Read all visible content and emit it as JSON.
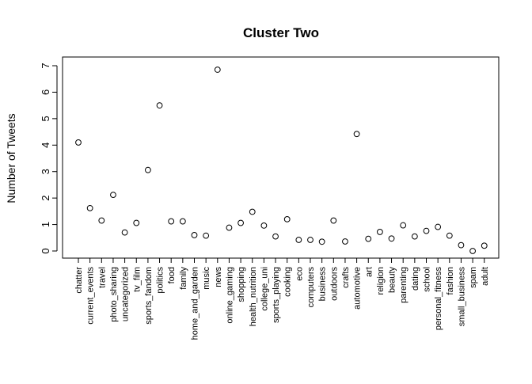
{
  "chart_data": {
    "type": "scatter",
    "title": "Cluster Two",
    "xlabel": "",
    "ylabel": "Number of Tweets",
    "ylim": [
      0,
      7
    ],
    "yticks": [
      0,
      1,
      2,
      3,
      4,
      5,
      6,
      7
    ],
    "grid": false,
    "marker": "open-circle",
    "categories": [
      "chatter",
      "current_events",
      "travel",
      "photo_sharing",
      "uncategorized",
      "tv_film",
      "sports_fandom",
      "politics",
      "food",
      "family",
      "home_and_garden",
      "music",
      "news",
      "online_gaming",
      "shopping",
      "health_nutrition",
      "college_uni",
      "sports_playing",
      "cooking",
      "eco",
      "computers",
      "business",
      "outdoors",
      "crafts",
      "automotive",
      "art",
      "religion",
      "beauty",
      "parenting",
      "dating",
      "school",
      "personal_fitness",
      "fashion",
      "small_business",
      "spam",
      "adult"
    ],
    "values": [
      4.1,
      1.62,
      1.15,
      2.12,
      0.7,
      1.06,
      3.06,
      5.5,
      1.12,
      1.12,
      0.6,
      0.58,
      6.85,
      0.88,
      1.06,
      1.48,
      0.96,
      0.55,
      1.2,
      0.42,
      0.42,
      0.35,
      1.15,
      0.36,
      4.42,
      0.46,
      0.72,
      0.47,
      0.97,
      0.55,
      0.76,
      0.91,
      0.58,
      0.22,
      0.0,
      0.2
    ]
  }
}
